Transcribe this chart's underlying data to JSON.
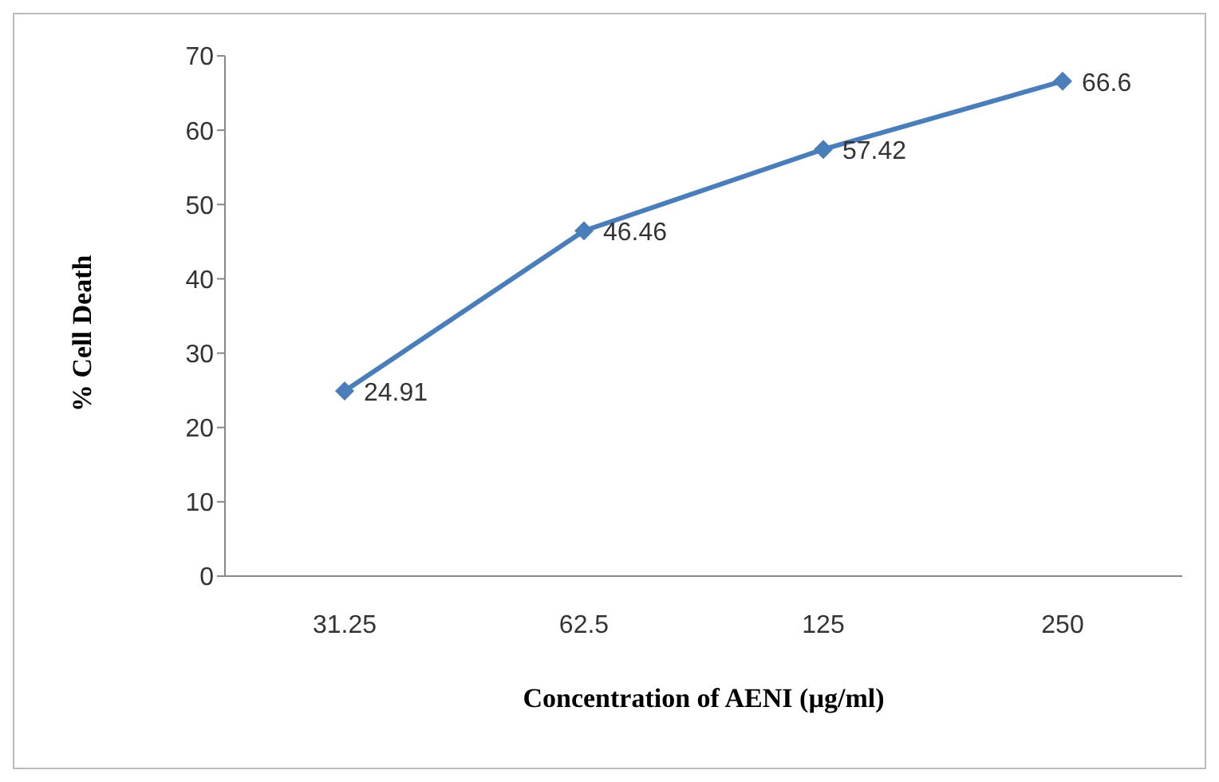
{
  "chart_data": {
    "type": "line",
    "xlabel": "Concentration of AENI (µg/ml)",
    "ylabel": "% Cell Death",
    "categories": [
      "31.25",
      "62.5",
      "125",
      "250"
    ],
    "series": [
      {
        "color": "#4a7ebb",
        "values": [
          24.91,
          46.46,
          57.42,
          66.6
        ]
      }
    ],
    "ylim": [
      0,
      70
    ],
    "yticks": [
      0,
      10,
      20,
      30,
      40,
      50,
      60,
      70
    ],
    "marker": "diamond",
    "line_style": "solid",
    "data_labels": true,
    "grid": false,
    "legend": false
  }
}
